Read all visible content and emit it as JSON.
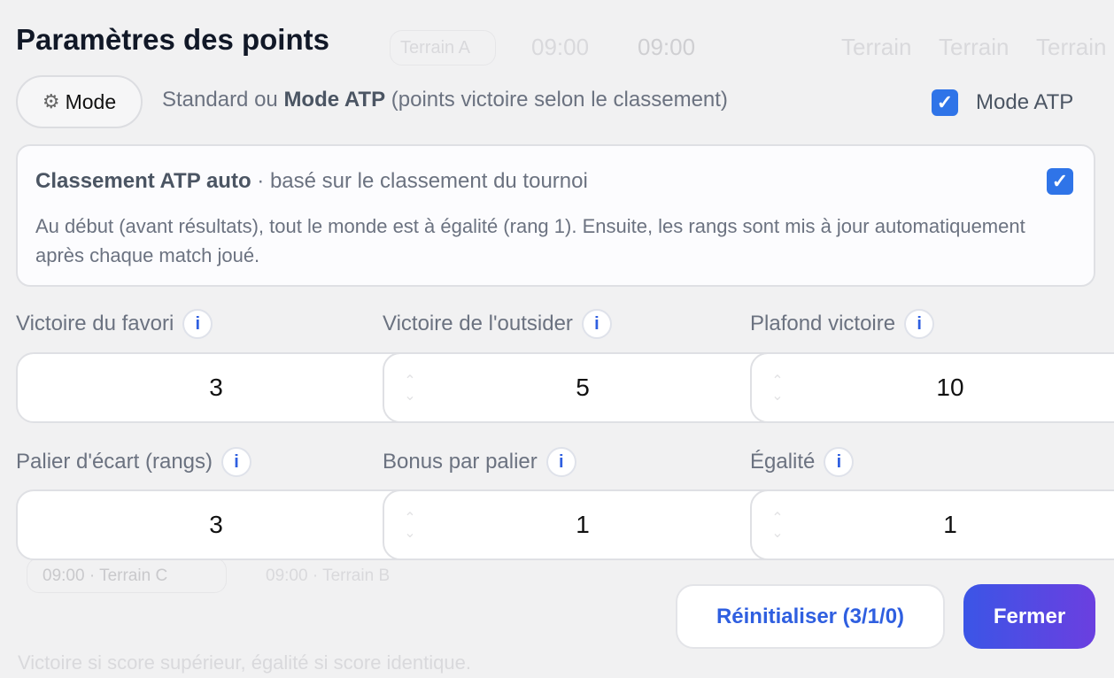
{
  "background": {
    "terrain_a": "Terrain A",
    "terrain_b": "09:00 · Terrain B",
    "terrain_c": "09:00 · Terrain C",
    "time": "09:00",
    "terrain": "Terrain",
    "rule_hint": "Victoire si score supérieur, égalité si score identique."
  },
  "modal": {
    "title": "Paramètres des points",
    "mode_button": "Mode",
    "mode_desc_prefix": "Standard ou ",
    "mode_desc_bold": "Mode ATP",
    "mode_desc_suffix": " (points victoire selon le classement)",
    "mode_atp_label": "Mode ATP",
    "mode_atp_checked": true,
    "auto_card": {
      "title_bold": "Classement ATP auto",
      "title_rest": " · basé sur le classement du tournoi",
      "checked": true,
      "body": "Au début (avant résultats), tout le monde est à égalité (rang 1). Ensuite, les rangs sont mis à jour automatiquement après chaque match joué."
    },
    "fields": [
      {
        "label": "Victoire du favori",
        "value": "3"
      },
      {
        "label": "Victoire de l'outsider",
        "value": "5"
      },
      {
        "label": "Plafond victoire",
        "value": "10"
      },
      {
        "label": "Palier d'écart (rangs)",
        "value": "3"
      },
      {
        "label": "Bonus par palier",
        "value": "1"
      },
      {
        "label": "Égalité",
        "value": "1"
      }
    ],
    "reset_button": "Réinitialiser (3/1/0)",
    "close_button": "Fermer"
  },
  "colors": {
    "accent": "#2f74e8",
    "link": "#2f5fe0",
    "gradient_start": "#3b55e6",
    "gradient_end": "#6b3fe0"
  }
}
